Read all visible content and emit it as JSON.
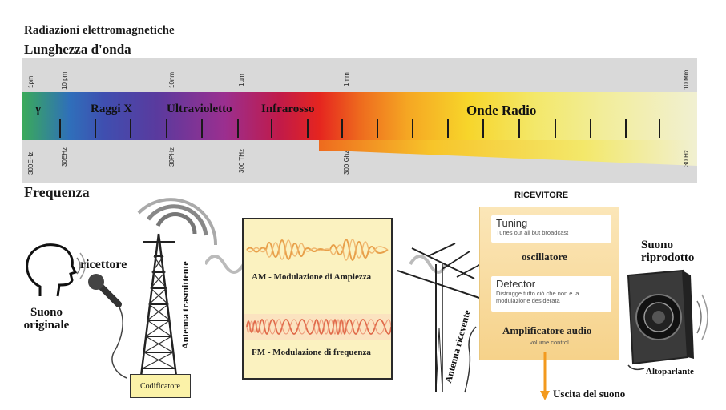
{
  "titles": {
    "main": "Radiazioni elettromagnetiche",
    "wavelength": "Lunghezza d'onda",
    "frequency": "Frequenza"
  },
  "wavelength_ticks": [
    "1pm",
    "10 pm",
    "10nm",
    "1µm",
    "1mm",
    "10 Mm"
  ],
  "frequency_ticks": [
    "300EHz",
    "30EHz",
    "30PHz",
    "300 THz",
    "300 Ghz",
    "30 Hz"
  ],
  "bands": [
    "γ",
    "Raggi X",
    "Ultravioletto",
    "Infrarosso",
    "Onde Radio"
  ],
  "transmitter": {
    "original_sound": "Suono originale",
    "microphone": "ricettore",
    "antenna": "Antenna trasmittente",
    "encoder": "Codificatore"
  },
  "modulation": {
    "am": "AM - Modulazione di Ampiezza",
    "fm": "FM - Modulazione di frequenza"
  },
  "receiver": {
    "antenna": "Antenna ricevente",
    "heading": "RICEVITORE",
    "tuning_title": "Tuning",
    "tuning_sub": "Tunes out all but broadcast",
    "oscillator": "oscillatore",
    "detector_title": "Detector",
    "detector_sub": "Distrugge tutto ciò che non è la modulazione desiderata",
    "amplifier": "Amplificatore audio",
    "volume": "volume control",
    "output": "Uscita del suono"
  },
  "speaker": {
    "reproduced": "Suono riprodotto",
    "label": "Altoparlante"
  },
  "colors": {
    "accent_orange": "#f39a1e",
    "panel_yellow": "#fbf2c0"
  }
}
